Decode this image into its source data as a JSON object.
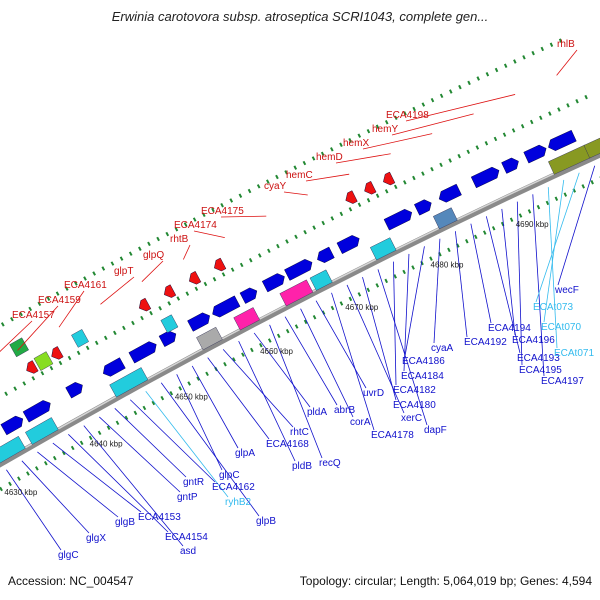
{
  "header": {
    "title": "Erwinia carotovora subsp. atroseptica SCRI1043, complete gen..."
  },
  "footer": {
    "accession": "Accession: NC_004547",
    "summary": "Topology: circular; Length: 5,064,019 bp; Genes: 4,594"
  },
  "colors": {
    "forward_gene": "#0000dd",
    "reverse_gene": "#ee1111",
    "cds_block": "#22ccdd",
    "rna_label": "#33bbee",
    "backbone": "#888888",
    "tick_dot": "#228833"
  },
  "scale_ticks": [
    "4630 kbp",
    "4640 kbp",
    "4650 kbp",
    "4660 kbp",
    "4670 kbp",
    "4680 kbp",
    "4690 kbp",
    "4700 kbp"
  ],
  "top_labels": [
    "ECA4157",
    "ECA4159",
    "ECA4161",
    "glpT",
    "glpQ",
    "rhtB",
    "ECA4174",
    "ECA4175",
    "cyaY",
    "hemC",
    "hemD",
    "hemX",
    "hemY",
    "ECA4198",
    "rhlB"
  ],
  "bottom_labels": [
    "glgC",
    "glgX",
    "glgB",
    "ECA4153",
    "ECA4154",
    "asd",
    "gntP",
    "gntR",
    "ECA4162",
    "ryhB2",
    "glpB",
    "glpC",
    "glpA",
    "ECA4168",
    "rhtC",
    "pldB",
    "pldA",
    "recQ",
    "abrB",
    "corA",
    "uvrD",
    "ECA4178",
    "xerC",
    "ECA4180",
    "dapF",
    "ECA4182",
    "ECA4184",
    "ECA4186",
    "cyaA",
    "ECA4192",
    "ECA4194",
    "ECA4193",
    "ECA4196",
    "ECA4195",
    "ECA4197",
    "ECAt071",
    "ECAt070",
    "ECAt073",
    "wecF"
  ]
}
